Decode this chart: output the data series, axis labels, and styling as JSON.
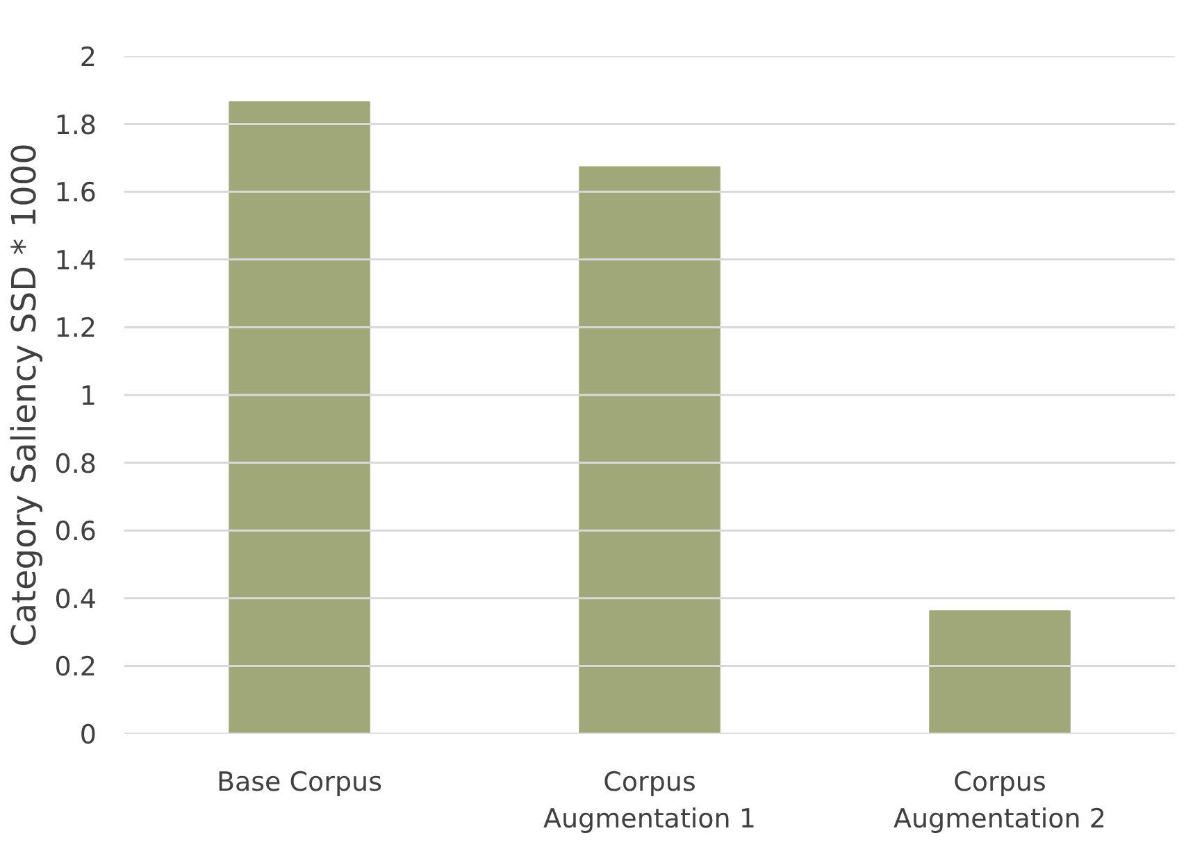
{
  "chart_data": {
    "type": "bar",
    "ylabel": "Category Saliency SSD * 1000",
    "categories": [
      "Base Corpus",
      "Corpus Augmentation 1",
      "Corpus Augmentation 2"
    ],
    "values": [
      1.865,
      1.673,
      0.362
    ],
    "color": "#a0a87a",
    "ylim": [
      0,
      2
    ],
    "yticks": [
      0,
      0.2,
      0.4,
      0.6,
      0.8,
      1,
      1.2,
      1.4,
      1.6,
      1.8,
      2
    ],
    "grid": "y"
  }
}
